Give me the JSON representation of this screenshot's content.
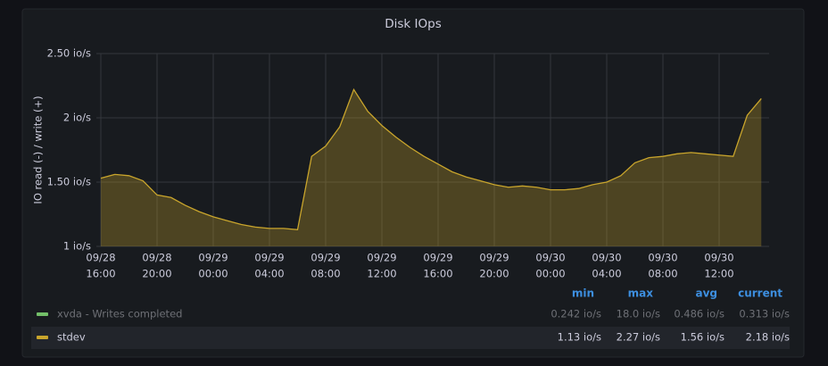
{
  "chart_data": {
    "type": "area",
    "title": "Disk IOps",
    "y_label": "IO read (-) / write (+)",
    "x": [
      "09/28 16:00",
      "09/28 17:00",
      "09/28 18:00",
      "09/28 19:00",
      "09/28 20:00",
      "09/28 21:00",
      "09/28 22:00",
      "09/28 23:00",
      "09/29 00:00",
      "09/29 01:00",
      "09/29 02:00",
      "09/29 03:00",
      "09/29 04:00",
      "09/29 05:00",
      "09/29 06:00",
      "09/29 07:00",
      "09/29 08:00",
      "09/29 09:00",
      "09/29 10:00",
      "09/29 11:00",
      "09/29 12:00",
      "09/29 13:00",
      "09/29 14:00",
      "09/29 15:00",
      "09/29 16:00",
      "09/29 17:00",
      "09/29 18:00",
      "09/29 19:00",
      "09/29 20:00",
      "09/29 21:00",
      "09/29 22:00",
      "09/29 23:00",
      "09/30 00:00",
      "09/30 01:00",
      "09/30 02:00",
      "09/30 03:00",
      "09/30 04:00",
      "09/30 05:00",
      "09/30 06:00",
      "09/30 07:00",
      "09/30 08:00",
      "09/30 09:00",
      "09/30 10:00",
      "09/30 11:00",
      "09/30 12:00",
      "09/30 13:00",
      "09/30 14:00",
      "09/30 15:00"
    ],
    "xticks": [
      {
        "index": 0,
        "date": "09/28",
        "time": "16:00"
      },
      {
        "index": 4,
        "date": "09/28",
        "time": "20:00"
      },
      {
        "index": 8,
        "date": "09/29",
        "time": "00:00"
      },
      {
        "index": 12,
        "date": "09/29",
        "time": "04:00"
      },
      {
        "index": 16,
        "date": "09/29",
        "time": "08:00"
      },
      {
        "index": 20,
        "date": "09/29",
        "time": "12:00"
      },
      {
        "index": 24,
        "date": "09/29",
        "time": "16:00"
      },
      {
        "index": 28,
        "date": "09/29",
        "time": "20:00"
      },
      {
        "index": 32,
        "date": "09/30",
        "time": "00:00"
      },
      {
        "index": 36,
        "date": "09/30",
        "time": "04:00"
      },
      {
        "index": 40,
        "date": "09/30",
        "time": "08:00"
      },
      {
        "index": 44,
        "date": "09/30",
        "time": "12:00"
      }
    ],
    "ylim": [
      1,
      2.5
    ],
    "yticks": [
      {
        "value": 1,
        "label": "1 io/s"
      },
      {
        "value": 1.5,
        "label": "1.50 io/s"
      },
      {
        "value": 2,
        "label": "2 io/s"
      },
      {
        "value": 2.5,
        "label": "2.50 io/s"
      }
    ],
    "grid": true,
    "legend_columns": [
      "min",
      "max",
      "avg",
      "current"
    ],
    "series": [
      {
        "name": "xvda - Writes completed",
        "color": "#73bf69",
        "hidden": true,
        "stats": [
          "0.242 io/s",
          "18.0 io/s",
          "0.486 io/s",
          "0.313 io/s"
        ]
      },
      {
        "name": "stdev",
        "color": "#c9a52c",
        "hidden": false,
        "stats": [
          "1.13 io/s",
          "2.27 io/s",
          "1.56 io/s",
          "2.18 io/s"
        ],
        "values": [
          1.53,
          1.56,
          1.55,
          1.51,
          1.4,
          1.38,
          1.32,
          1.27,
          1.23,
          1.2,
          1.17,
          1.15,
          1.14,
          1.14,
          1.13,
          1.7,
          1.78,
          1.93,
          2.22,
          2.05,
          1.94,
          1.85,
          1.77,
          1.7,
          1.64,
          1.58,
          1.54,
          1.51,
          1.48,
          1.46,
          1.47,
          1.46,
          1.44,
          1.44,
          1.45,
          1.48,
          1.5,
          1.55,
          1.65,
          1.69,
          1.7,
          1.72,
          1.73,
          1.72,
          1.71,
          1.7,
          2.02,
          2.15
        ]
      }
    ]
  }
}
